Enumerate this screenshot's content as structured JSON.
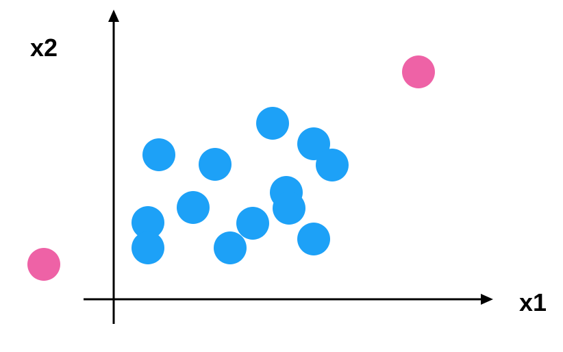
{
  "labels": {
    "x_axis": "x1",
    "y_axis": "x2"
  },
  "colors": {
    "inlier": "#1DA1F7",
    "outlier": "#EE62A6",
    "axis": "#000000"
  },
  "point_groups": [
    "inlier",
    "outlier"
  ]
}
